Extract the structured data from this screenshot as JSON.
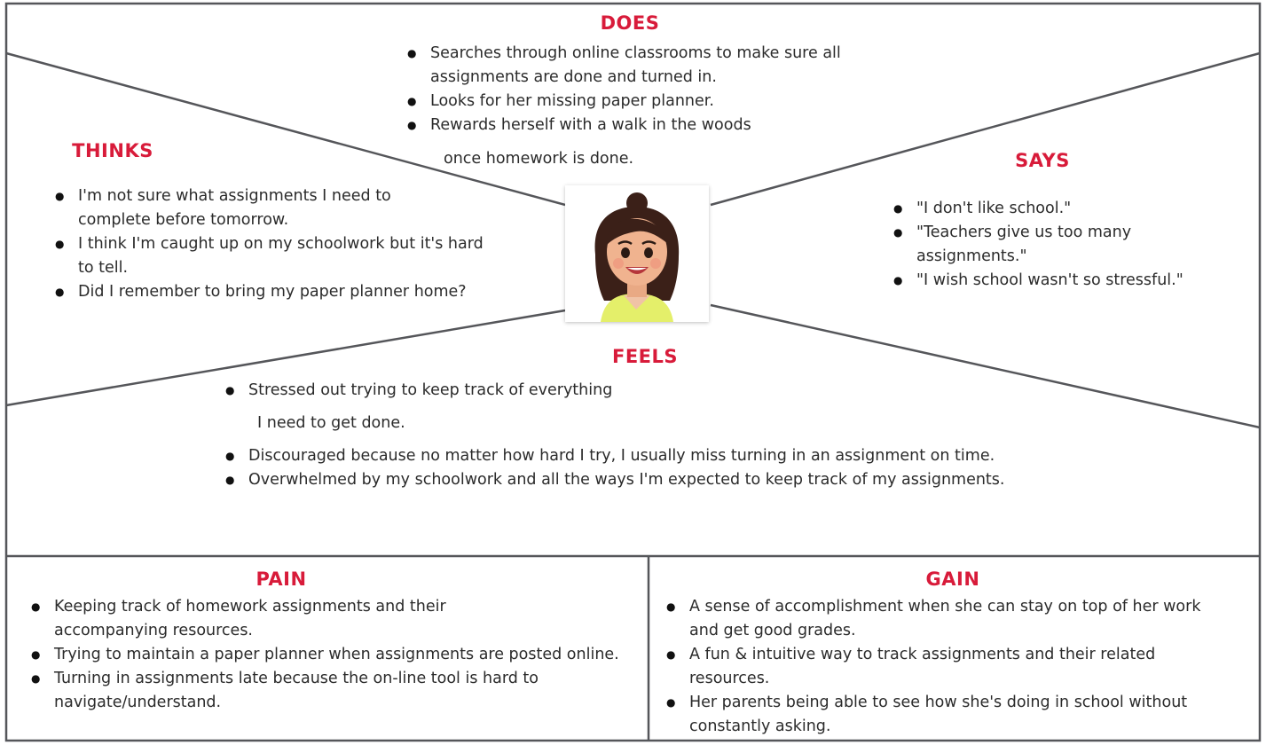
{
  "does": {
    "heading": "DOES",
    "items": [
      "Searches through online classrooms to make sure all assignments are done and turned in.",
      "Looks for her missing paper planner.",
      "Rewards herself with a walk in the woods"
    ],
    "continuation": "once homework is done."
  },
  "thinks": {
    "heading": "THINKS",
    "items": [
      "I'm not sure what assignments I need to complete before tomorrow.",
      "I think I'm caught up on my schoolwork but it's hard to tell.",
      "Did I remember to bring my paper planner home?"
    ]
  },
  "says": {
    "heading": "SAYS",
    "items": [
      "\"I don't like school.\"",
      "\"Teachers give us too many assignments.\"",
      "\"I wish school wasn't so stressful.\""
    ]
  },
  "feels": {
    "heading": "FEELS",
    "first_item": "Stressed out trying to keep track of everything",
    "continuation": "I need to get done.",
    "items": [
      "Discouraged because no matter how hard I try, I usually miss turning in an assignment on time.",
      "Overwhelmed by my schoolwork and all the ways I'm expected to keep track of my assignments."
    ]
  },
  "pain": {
    "heading": "PAIN",
    "items": [
      "Keeping track of homework assignments and their accompanying resources.",
      "Trying to maintain a paper planner when assignments are posted online.",
      "Turning in assignments late because the on-line tool is hard to navigate/understand."
    ]
  },
  "gain": {
    "heading": "GAIN",
    "items": [
      "A sense of accomplishment when she can stay on top of her work and get good grades.",
      "A fun & intuitive way to track assignments and their related resources.",
      "Her parents being able to see how she's doing in school without constantly asking."
    ]
  },
  "colors": {
    "heading": "#d81b3a",
    "border": "#55565a",
    "text": "#2b2b2b"
  }
}
